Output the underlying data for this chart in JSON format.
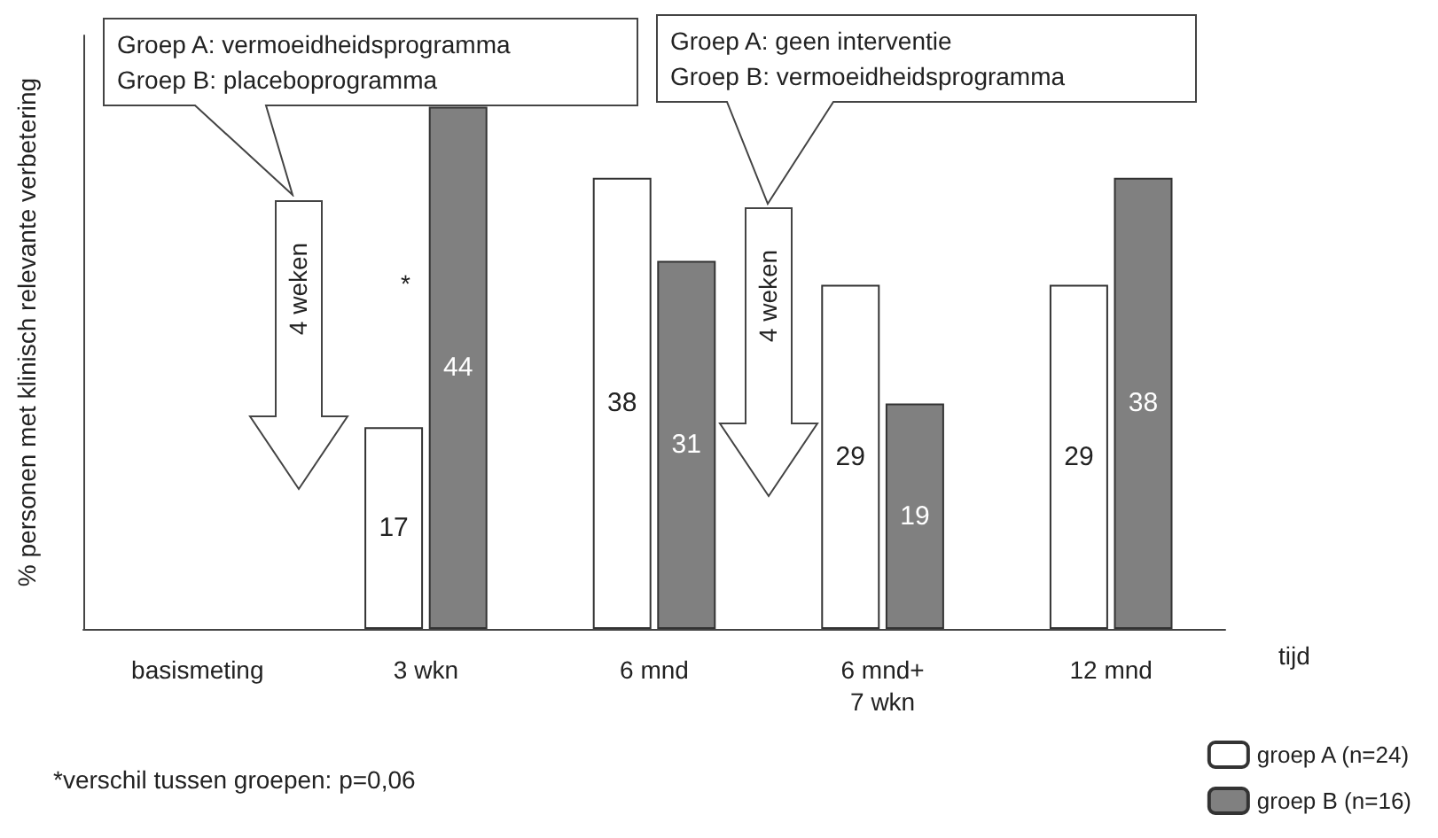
{
  "chart_data": {
    "type": "bar",
    "categories": [
      "basismeting",
      "3 wkn",
      "6 mnd",
      "6 mnd+\n7 wkn",
      "12 mnd"
    ],
    "series": [
      {
        "name": "groep A (n=24)",
        "color": "#ffffff",
        "values": [
          null,
          17,
          38,
          29,
          29
        ]
      },
      {
        "name": "groep B (n=16)",
        "color": "#808080",
        "values": [
          null,
          44,
          31,
          19,
          38
        ]
      }
    ],
    "xlabel": "tijd",
    "ylabel": "% personen met klinisch relevante verbetering",
    "annotations": [
      "Groep A: vermoeidheidsprogramma\nGroep B: placeboprogramma",
      "Groep A: geen interventie\nGroep B: vermoeidheidsprogramma",
      "4 weken",
      "4 weken",
      "*",
      "*verschil tussen groepen: p=0,06"
    ],
    "data_labels": true,
    "legend": "bottom right",
    "tick_labels": "x",
    "grid": false
  }
}
